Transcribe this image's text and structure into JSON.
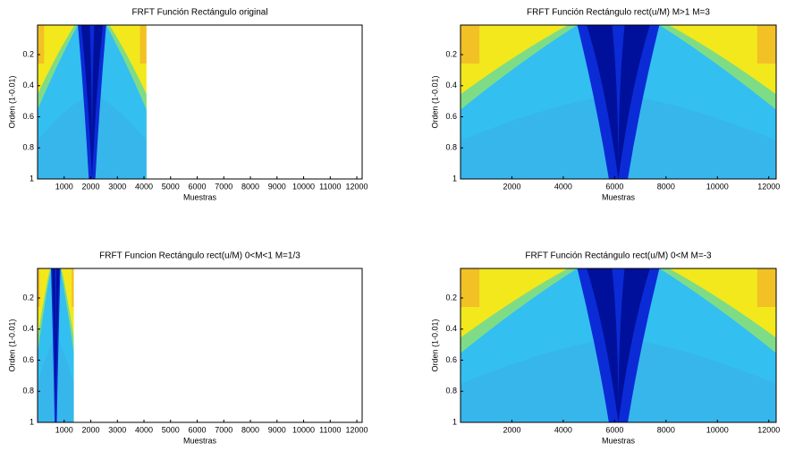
{
  "chart_data": [
    {
      "type": "heatmap",
      "title": "FRFT Función Rectángulo original",
      "xlabel": "Muestras",
      "ylabel": "Orden (1-0.01)",
      "x": [
        0,
        4096
      ],
      "xlim": [
        0,
        12200
      ],
      "xticks": [
        1000,
        2000,
        3000,
        4000,
        5000,
        6000,
        7000,
        8000,
        9000,
        10000,
        11000,
        12000
      ],
      "ylim": [
        0.01,
        1
      ],
      "yticks": [
        0.2,
        0.4,
        0.6,
        0.8,
        1
      ]
    },
    {
      "type": "heatmap",
      "title": "FRFT Función Rectángulo rect(u/M)  M>1  M=3",
      "xlabel": "Muestras",
      "ylabel": "Orden (1-0.01)",
      "x": [
        0,
        12288
      ],
      "xlim": [
        0,
        12288
      ],
      "xticks": [
        2000,
        4000,
        6000,
        8000,
        10000,
        12000
      ],
      "ylim": [
        0.01,
        1
      ],
      "yticks": [
        0.2,
        0.4,
        0.6,
        0.8,
        1
      ]
    },
    {
      "type": "heatmap",
      "title": "FRFT Funcion Rectángulo rect(u/M)  0<M<1  M=1/3",
      "xlabel": "Muestras",
      "ylabel": "Orden (1-0.01)",
      "x": [
        0,
        1365
      ],
      "xlim": [
        0,
        12200
      ],
      "xticks": [
        1000,
        2000,
        3000,
        4000,
        5000,
        6000,
        7000,
        8000,
        9000,
        10000,
        11000,
        12000
      ],
      "ylim": [
        0.01,
        1
      ],
      "yticks": [
        0.2,
        0.4,
        0.6,
        0.8,
        1
      ]
    },
    {
      "type": "heatmap",
      "title": "FRFT Función Rectángulo rect(u/M)  0<M  M=-3",
      "xlabel": "Muestras",
      "ylabel": "Orden (1-0.01)",
      "x": [
        0,
        12288
      ],
      "xlim": [
        0,
        12288
      ],
      "xticks": [
        2000,
        4000,
        6000,
        8000,
        10000,
        12000
      ],
      "ylim": [
        0.01,
        1
      ],
      "yticks": [
        0.2,
        0.4,
        0.6,
        0.8,
        1
      ]
    }
  ]
}
